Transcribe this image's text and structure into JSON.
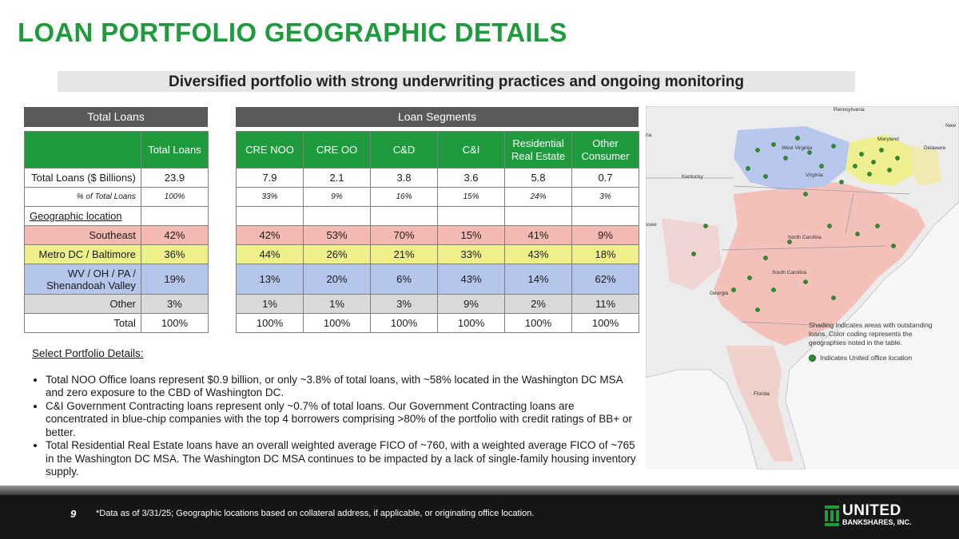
{
  "title": "LOAN PORTFOLIO GEOGRAPHIC DETAILS",
  "subtitle": "Diversified portfolio with strong underwriting practices and ongoing monitoring",
  "total_loans_section": "Total Loans",
  "loan_segments_section": "Loan Segments",
  "total_loans_table": {
    "header": "Total Loans",
    "rows": [
      {
        "label": "Total Loans ($ Billions)",
        "value": "23.9"
      },
      {
        "label": "% of Total Loans",
        "value": "100%"
      },
      {
        "label": "Geographic location",
        "value": ""
      },
      {
        "label": "Southeast",
        "value": "42%"
      },
      {
        "label": "Metro DC / Baltimore",
        "value": "36%"
      },
      {
        "label": "WV / OH / PA / Shenandoah Valley",
        "value": "19%"
      },
      {
        "label": "Other",
        "value": "3%"
      },
      {
        "label": "Total",
        "value": "100%"
      }
    ]
  },
  "segments_table": {
    "headers": [
      "CRE NOO",
      "CRE OO",
      "C&D",
      "C&I",
      "Residential Real Estate",
      "Other Consumer"
    ],
    "rows": [
      [
        "7.9",
        "2.1",
        "3.8",
        "3.6",
        "5.8",
        "0.7"
      ],
      [
        "33%",
        "9%",
        "16%",
        "15%",
        "24%",
        "3%"
      ],
      [
        "",
        "",
        "",
        "",
        "",
        ""
      ],
      [
        "42%",
        "53%",
        "70%",
        "15%",
        "41%",
        "9%"
      ],
      [
        "44%",
        "26%",
        "21%",
        "33%",
        "43%",
        "18%"
      ],
      [
        "13%",
        "20%",
        "6%",
        "43%",
        "14%",
        "62%"
      ],
      [
        "1%",
        "1%",
        "3%",
        "9%",
        "2%",
        "11%"
      ],
      [
        "100%",
        "100%",
        "100%",
        "100%",
        "100%",
        "100%"
      ]
    ]
  },
  "details": {
    "heading": "Select Portfolio Details:",
    "bullets": [
      "Total NOO Office loans represent $0.9 billion, or only ~3.8% of total loans, with ~58% located in the Washington DC MSA and zero exposure to the CBD of Washington DC.",
      "C&I Government Contracting loans represent only ~0.7% of total loans. Our Government Contracting loans are concentrated in blue-chip companies with the top 4 borrowers comprising >80% of the portfolio with credit ratings of BB+ or better.",
      "Total Residential Real Estate loans have an overall weighted average FICO of ~760, with a weighted average FICO of ~765 in the Washington DC MSA. The Washington DC MSA continues to be impacted by a lack of single-family housing inventory supply."
    ]
  },
  "map": {
    "labels": [
      "Pennsylvania",
      "New",
      "Maryland",
      "Delaware",
      "West Virginia",
      "Kentucky",
      "Virginia",
      "North Carolina",
      "South Carolina",
      "Georgia",
      "Florida",
      "na",
      "ssee"
    ],
    "legend_note": "Shading indicates areas with outstanding loans. Color coding represents the geographies noted in the table.",
    "legend_office": "Indicates United office location",
    "colors": {
      "southeast": "#f4b9b1",
      "metro_dc": "#eef08a",
      "wv": "#b4c6ec",
      "office": "#2e8b2e"
    }
  },
  "footer": {
    "page_number": "9",
    "footnote": "*Data as of 3/31/25; Geographic locations based on collateral address, if applicable, or originating office location.",
    "logo_line1": "UNITED",
    "logo_line2": "BANKSHARES, INC."
  }
}
